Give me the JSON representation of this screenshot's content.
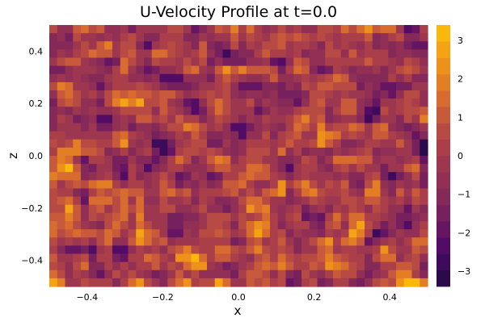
{
  "chart_data": {
    "type": "heatmap",
    "title": "U-Velocity Profile at t=0.0",
    "xlabel": "x",
    "ylabel": "z",
    "xlim": [
      -0.5,
      0.5
    ],
    "ylim": [
      -0.5,
      0.5
    ],
    "xticks": [
      -0.4,
      -0.2,
      0.0,
      0.2,
      0.4
    ],
    "xtick_labels": [
      "−0.4",
      "−0.2",
      "0.0",
      "0.2",
      "0.4"
    ],
    "yticks": [
      -0.4,
      -0.2,
      0.0,
      0.2,
      0.4
    ],
    "ytick_labels": [
      "−0.4",
      "−0.2",
      "0.0",
      "0.2",
      "0.4"
    ],
    "grid": false,
    "colorbar": {
      "range": [
        -3.4,
        3.4
      ],
      "ticks": [
        -3,
        -2,
        -1,
        0,
        1,
        2,
        3
      ],
      "tick_labels": [
        "−3",
        "−2",
        "−1",
        "0",
        "1",
        "2",
        "3"
      ],
      "levels": 16,
      "colormap": "inferno-like",
      "colors": [
        "#2a0a4a",
        "#3d0a5c",
        "#520c66",
        "#661563",
        "#77205e",
        "#852a58",
        "#912f54",
        "#9d3750",
        "#aa3f4a",
        "#b84a44",
        "#c8593a",
        "#d86b2f",
        "#e47e24",
        "#ed911b",
        "#f4a312",
        "#fab80d"
      ]
    },
    "field": {
      "description_of_values": "noisy random field in range [-3.4, 3.4]",
      "grid_size": [
        48,
        32
      ],
      "seed": 7
    }
  }
}
